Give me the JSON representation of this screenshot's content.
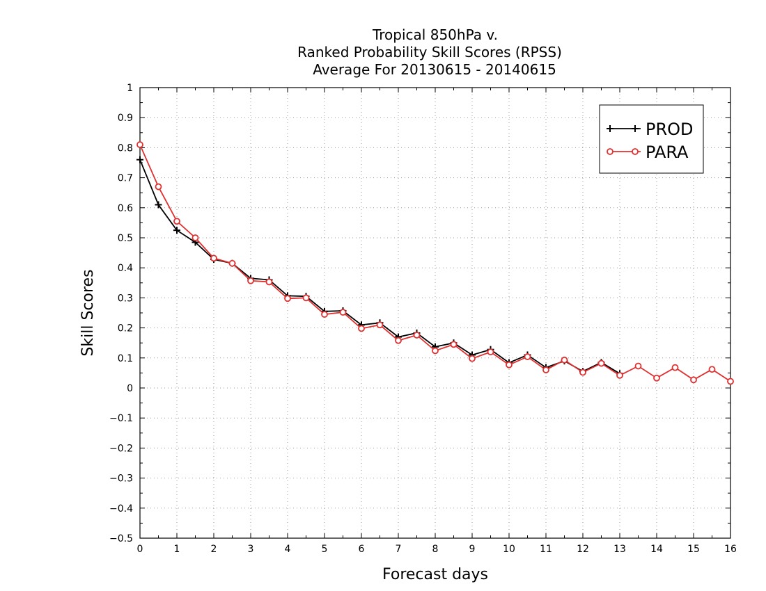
{
  "chart_data": {
    "type": "line",
    "title_lines": [
      "Tropical 850hPa v.",
      "Ranked Probability Skill Scores (RPSS)",
      "Average For 20130615 - 20140615"
    ],
    "xlabel": "Forecast days",
    "ylabel": "Skill Scores",
    "xlim": [
      0,
      16
    ],
    "ylim": [
      -0.5,
      1
    ],
    "xticks": [
      0,
      1,
      2,
      3,
      4,
      5,
      6,
      7,
      8,
      9,
      10,
      11,
      12,
      13,
      14,
      15,
      16
    ],
    "xtick_labels": [
      "0",
      "1",
      "2",
      "3",
      "4",
      "5",
      "6",
      "7",
      "8",
      "9",
      "10",
      "11",
      "12",
      "13",
      "14",
      "15",
      "16"
    ],
    "yticks": [
      -0.5,
      -0.4,
      -0.3,
      -0.2,
      -0.1,
      0,
      0.1,
      0.2,
      0.3,
      0.4,
      0.5,
      0.6,
      0.7,
      0.8,
      0.9,
      1
    ],
    "ytick_labels": [
      "-0.5",
      "-0.4",
      "-0.3",
      "-0.2",
      "-0.1",
      "0",
      "0.1",
      "0.2",
      "0.3",
      "0.4",
      "0.5",
      "0.6",
      "0.7",
      "0.8",
      "0.9",
      "1"
    ],
    "grid": true,
    "legend_position": "top-right",
    "series": [
      {
        "name": "PROD",
        "color": "#000000",
        "marker": "plus",
        "x": [
          0,
          0.5,
          1,
          1.5,
          2,
          2.5,
          3,
          3.5,
          4,
          4.5,
          5,
          5.5,
          6,
          6.5,
          7,
          7.5,
          8,
          8.5,
          9,
          9.5,
          10,
          10.5,
          11,
          11.5,
          12,
          12.5,
          13
        ],
        "values": [
          0.76,
          0.61,
          0.525,
          0.485,
          0.428,
          0.415,
          0.365,
          0.36,
          0.307,
          0.305,
          0.255,
          0.257,
          0.21,
          0.217,
          0.17,
          0.183,
          0.137,
          0.15,
          0.11,
          0.128,
          0.084,
          0.11,
          0.068,
          0.09,
          0.055,
          0.085,
          0.048
        ]
      },
      {
        "name": "PARA",
        "color": "#e03030",
        "marker": "circle",
        "x": [
          0,
          0.5,
          1,
          1.5,
          2,
          2.5,
          3,
          3.5,
          4,
          4.5,
          5,
          5.5,
          6,
          6.5,
          7,
          7.5,
          8,
          8.5,
          9,
          9.5,
          10,
          10.5,
          11,
          11.5,
          12,
          12.5,
          13,
          13.5,
          14,
          14.5,
          15,
          15.5,
          16
        ],
        "values": [
          0.81,
          0.67,
          0.555,
          0.5,
          0.432,
          0.415,
          0.357,
          0.353,
          0.298,
          0.3,
          0.245,
          0.252,
          0.198,
          0.21,
          0.158,
          0.176,
          0.124,
          0.145,
          0.098,
          0.12,
          0.077,
          0.104,
          0.06,
          0.093,
          0.052,
          0.082,
          0.042,
          0.073,
          0.033,
          0.068,
          0.027,
          0.062,
          0.022
        ]
      }
    ]
  }
}
